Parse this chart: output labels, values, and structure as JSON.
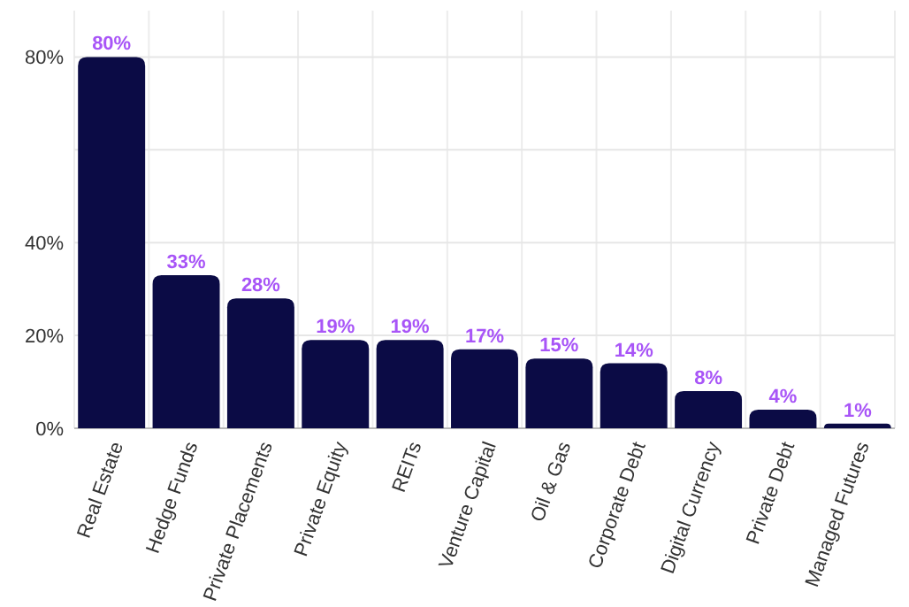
{
  "chart_data": {
    "type": "bar",
    "categories": [
      "Real Estate",
      "Hedge Funds",
      "Private Placements",
      "Private Equity",
      "REITs",
      "Venture Capital",
      "Oil & Gas",
      "Corporate Debt",
      "Digital Currency",
      "Private Debt",
      "Managed Futures"
    ],
    "values": [
      80,
      33,
      28,
      19,
      19,
      17,
      15,
      14,
      8,
      4,
      1
    ],
    "color": "#0b0b45",
    "value_labels": [
      "80%",
      "33%",
      "28%",
      "19%",
      "19%",
      "17%",
      "15%",
      "14%",
      "8%",
      "4%",
      "1%"
    ],
    "ylim": [
      0,
      90
    ],
    "yticks": [
      {
        "value": 0,
        "label": "0%"
      },
      {
        "value": 20,
        "label": "20%"
      },
      {
        "value": 40,
        "label": "40%"
      },
      {
        "value": 60,
        "label": null
      },
      {
        "value": 80,
        "label": "80%"
      }
    ],
    "grid": true
  }
}
